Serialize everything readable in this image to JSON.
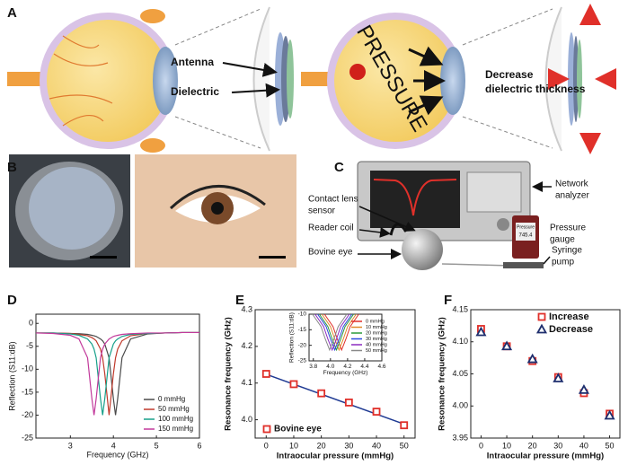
{
  "panel_labels": {
    "a": "A",
    "b": "B",
    "c": "C",
    "d": "D",
    "e": "E",
    "f": "F"
  },
  "panel_a": {
    "antenna": "Antenna",
    "dielectric": "Dielectric",
    "eye_text": "PRESSURE",
    "thickness": [
      "Decrease",
      "dielectric thickness"
    ]
  },
  "panel_c": {
    "network_analyzer": [
      "Network",
      "analyzer"
    ],
    "contact_lens": [
      "Contact lens",
      "sensor"
    ],
    "pressure_gauge": [
      "Pressure",
      "gauge"
    ],
    "reader_coil": "Reader coil",
    "bovine_eye": "Bovine eye",
    "syringe_pump": [
      "Syringe",
      "pump"
    ],
    "gauge_title": "Pressure",
    "gauge_value": "745.4"
  },
  "chart_data": [
    {
      "type": "line",
      "xlabel": "Frequency (GHz)",
      "ylabel": "Reflection (S11:dB)",
      "x": [
        2.2,
        2.6,
        3.0,
        3.2,
        3.4,
        3.5,
        3.55,
        3.6,
        3.7,
        3.75,
        3.8,
        3.9,
        4.0,
        4.05,
        4.1,
        4.2,
        4.4,
        4.8,
        5.2,
        5.6,
        6.0
      ],
      "series": [
        {
          "name": "0 mmHg",
          "color": "#4a4a4a",
          "values": [
            -2.1,
            -2.1,
            -2.2,
            -2.25,
            -2.4,
            -2.6,
            -2.7,
            -2.85,
            -3.4,
            -3.8,
            -4.5,
            -7.5,
            -16.4,
            -20,
            -16.4,
            -7.5,
            -3.4,
            -2.3,
            -2.1,
            -2.0,
            -2.0
          ]
        },
        {
          "name": "50 mmHg",
          "color": "#c0392b",
          "values": [
            -2.1,
            -2.1,
            -2.2,
            -2.4,
            -2.7,
            -3.1,
            -3.4,
            -3.8,
            -5.6,
            -7.5,
            -11,
            -20,
            -11,
            -7.5,
            -5.6,
            -3.8,
            -2.7,
            -2.2,
            -2.1,
            -2.0,
            -2.0
          ]
        },
        {
          "name": "100 mmHg",
          "color": "#17a08a",
          "values": [
            -2.1,
            -2.1,
            -2.3,
            -2.6,
            -3.4,
            -4.5,
            -5.6,
            -7.5,
            -16.4,
            -20,
            -16.4,
            -7.5,
            -4.5,
            -3.8,
            -3.4,
            -2.85,
            -2.4,
            -2.2,
            -2.1,
            -2.0,
            -2.0
          ]
        },
        {
          "name": "150 mmHg",
          "color": "#c2399b",
          "values": [
            -2.1,
            -2.2,
            -2.6,
            -3.4,
            -7.5,
            -16.4,
            -20,
            -16.4,
            -7.5,
            -5.6,
            -4.5,
            -3.4,
            -2.85,
            -2.7,
            -2.6,
            -2.4,
            -2.25,
            -2.1,
            -2.1,
            -2.0,
            -2.0
          ]
        }
      ],
      "xlim": [
        2.2,
        6
      ],
      "ylim": [
        -25,
        2
      ],
      "xticks": [
        3,
        4,
        5,
        6
      ],
      "yticks": [
        0,
        -5,
        -10,
        -15,
        -20,
        -25
      ],
      "legend": "lower right"
    },
    {
      "type": "scatter",
      "xlabel": "Intraocular pressure (mmHg)",
      "ylabel": "Resonance frequency (GHz)",
      "x": [
        0,
        10,
        20,
        30,
        40,
        50
      ],
      "series": [
        {
          "name": "Bovine eye",
          "color": "#e0302a",
          "marker": "square",
          "values": [
            4.125,
            4.097,
            4.072,
            4.047,
            4.022,
            3.985
          ]
        }
      ],
      "fit": {
        "color": "#1f3a93",
        "x": [
          0,
          50
        ],
        "values": [
          4.124,
          3.988
        ]
      },
      "xlim": [
        -4,
        54
      ],
      "ylim": [
        3.95,
        4.3
      ],
      "xticks": [
        0,
        10,
        20,
        30,
        40,
        50
      ],
      "yticks": [
        {
          "value": 4.0,
          "label": "4.0"
        },
        4.1,
        4.2,
        4.3
      ],
      "legend": "lower left"
    },
    {
      "type": "line",
      "xlabel": "Frequency (GHz)",
      "ylabel": "Reflection (S11:dB)",
      "series": [
        {
          "name": "0 mmHg",
          "color": "#e0302a",
          "x": [
            3.93,
            4.03,
            4.08,
            4.13,
            4.18,
            4.23,
            4.33
          ],
          "values": [
            -10,
            -14,
            -18,
            -21.5,
            -18,
            -14,
            -10
          ]
        },
        {
          "name": "10 mmHg",
          "color": "#e08a2a",
          "x": [
            3.9,
            4.0,
            4.05,
            4.1,
            4.15,
            4.2,
            4.3
          ],
          "values": [
            -10,
            -14,
            -18,
            -21.5,
            -18,
            -14,
            -10
          ]
        },
        {
          "name": "20 mmHg",
          "color": "#2a9a3a",
          "x": [
            3.87,
            3.97,
            4.02,
            4.07,
            4.12,
            4.17,
            4.27
          ],
          "values": [
            -10,
            -14,
            -18,
            -21.5,
            -18,
            -14,
            -10
          ]
        },
        {
          "name": "30 mmHg",
          "color": "#2a4ae0",
          "x": [
            3.85,
            3.95,
            4.0,
            4.05,
            4.1,
            4.15,
            4.25
          ],
          "values": [
            -10,
            -14,
            -18,
            -21.5,
            -18,
            -14,
            -10
          ]
        },
        {
          "name": "40 mmHg",
          "color": "#8a2ac0",
          "x": [
            3.82,
            3.92,
            3.97,
            4.02,
            4.07,
            4.12,
            4.22
          ],
          "values": [
            -10,
            -14,
            -18,
            -21.5,
            -18,
            -14,
            -10
          ]
        },
        {
          "name": "50 mmHg",
          "color": "#888888",
          "x": [
            3.79,
            3.89,
            3.94,
            3.99,
            4.04,
            4.09,
            4.19
          ],
          "values": [
            -10,
            -14,
            -18,
            -21.5,
            -18,
            -14,
            -10
          ]
        }
      ],
      "xlim": [
        3.75,
        4.6
      ],
      "ylim": [
        -25,
        -10
      ],
      "xticks": [
        3.8,
        {
          "value": 4.0,
          "label": "4.0"
        },
        4.2,
        4.4,
        4.6
      ],
      "yticks": [
        -25,
        -20,
        -15,
        -10
      ],
      "legend": "upper right"
    },
    {
      "type": "scatter",
      "xlabel": "Intraocular pressure (mmHg)",
      "ylabel": "Resonance frequency (GHz)",
      "x": [
        0,
        10,
        20,
        30,
        40,
        50
      ],
      "series": [
        {
          "name": "Increase",
          "color": "#e0302a",
          "marker": "square",
          "values": [
            4.12,
            4.093,
            4.07,
            4.045,
            4.02,
            3.988
          ]
        },
        {
          "name": "Decrease",
          "color": "#1f2f6e",
          "marker": "triangle",
          "values": [
            4.115,
            4.093,
            4.073,
            4.043,
            4.025,
            3.985
          ]
        }
      ],
      "xlim": [
        -4,
        54
      ],
      "ylim": [
        3.95,
        4.15
      ],
      "xticks": [
        0,
        10,
        20,
        30,
        40,
        50
      ],
      "yticks": [
        3.95,
        {
          "value": 4.0,
          "label": "4.00"
        },
        4.05,
        {
          "value": 4.1,
          "label": "4.10"
        },
        4.15
      ],
      "legend": "upper right"
    }
  ]
}
